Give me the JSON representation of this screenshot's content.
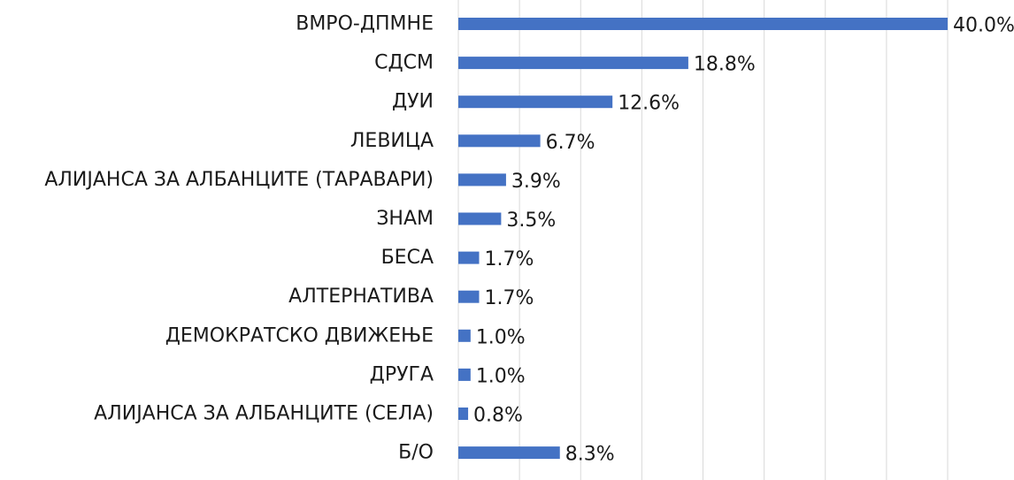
{
  "colors": {
    "bar": "#4472c4",
    "grid": "#d9d9d9",
    "text": "#1a1a1a",
    "background": "#ffffff"
  },
  "chart_data": {
    "type": "bar",
    "orientation": "horizontal",
    "categories": [
      "ВМРО-ДПМНЕ",
      "СДСМ",
      "ДУИ",
      "ЛЕВИЦА",
      "АЛИЈАНСА ЗА АЛБАНЦИТЕ (ТАРАВАРИ)",
      "ЗНАМ",
      "БЕСА",
      "АЛТЕРНАТИВА",
      "ДЕМОКРАТСКО ДВИЖЕЊЕ",
      "ДРУГА",
      "АЛИЈАНСА ЗА АЛБАНЦИТЕ (СЕЛА)",
      "Б/О"
    ],
    "values": [
      40.0,
      18.8,
      12.6,
      6.7,
      3.9,
      3.5,
      1.7,
      1.7,
      1.0,
      1.0,
      0.8,
      8.3
    ],
    "value_labels": [
      "40.0%",
      "18.8%",
      "12.6%",
      "6.7%",
      "3.9%",
      "3.5%",
      "1.7%",
      "1.7%",
      "1.0%",
      "1.0%",
      "0.8%",
      "8.3%"
    ],
    "unit": "%",
    "xlim": [
      0,
      40
    ],
    "grid": true,
    "legend": "none",
    "title": "",
    "xlabel": "",
    "ylabel": ""
  }
}
